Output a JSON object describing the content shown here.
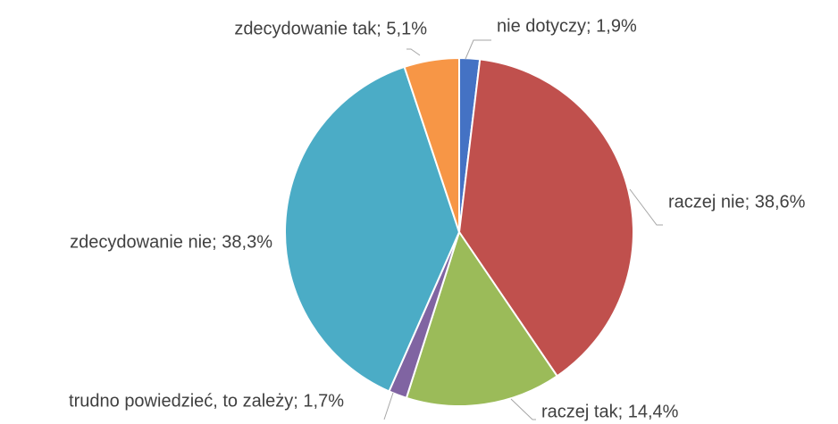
{
  "chart_data": {
    "type": "pie",
    "values": [
      1.9,
      38.6,
      14.4,
      1.7,
      38.3,
      5.1
    ],
    "value_labels": [
      "nie dotyczy; 1,9%",
      "raczej nie; 38,6%",
      "raczej tak; 14,4%",
      "trudno powiedzieć, to zależy; 1,7%",
      "zdecydowanie nie; 38,3%",
      "zdecydowanie tak; 5,1%"
    ],
    "colors": [
      "#4472c4",
      "#c0504d",
      "#9bbb59",
      "#8064a2",
      "#4bacc6",
      "#f79646"
    ]
  }
}
